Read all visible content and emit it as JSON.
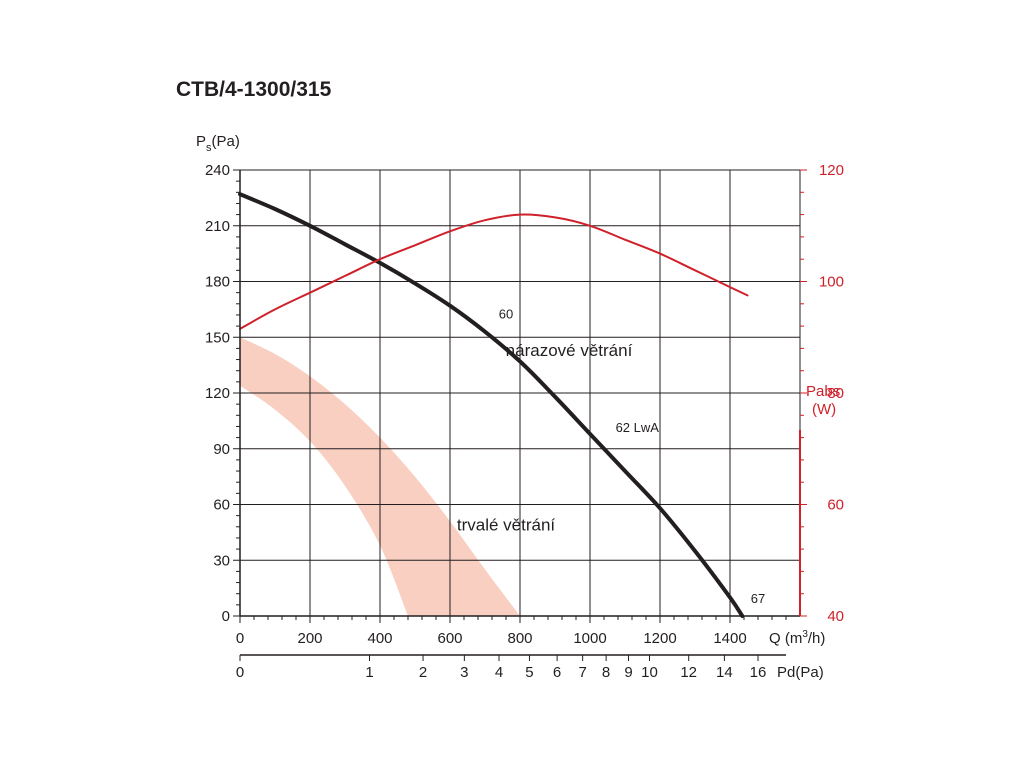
{
  "chart_data": {
    "type": "line",
    "title": "CTB/4-1300/315",
    "y_axis_left": {
      "label_main": "P",
      "label_sub": "s",
      "label_unit": "(Pa)",
      "range": [
        0,
        240
      ],
      "ticks": [
        0,
        30,
        60,
        90,
        120,
        150,
        180,
        210,
        240
      ]
    },
    "y_axis_right": {
      "label_line1": "Pabs",
      "label_line2": "(W)",
      "range": [
        40,
        120
      ],
      "ticks": [
        40,
        60,
        80,
        100,
        120
      ],
      "color": "#d0202a"
    },
    "x_axis": {
      "label": "Q (m",
      "label_sup": "3",
      "label_end": "/h)",
      "range": [
        0,
        1600
      ],
      "ticks": [
        0,
        200,
        400,
        600,
        800,
        1000,
        1200,
        1400
      ]
    },
    "x_axis_secondary": {
      "label": "Pd(Pa)",
      "ticks": [
        {
          "label": "0",
          "q": 0
        },
        {
          "label": "1",
          "q": 370
        },
        {
          "label": "2",
          "q": 523
        },
        {
          "label": "3",
          "q": 641
        },
        {
          "label": "4",
          "q": 740
        },
        {
          "label": "5",
          "q": 827
        },
        {
          "label": "6",
          "q": 906
        },
        {
          "label": "7",
          "q": 979
        },
        {
          "label": "8",
          "q": 1046
        },
        {
          "label": "9",
          "q": 1110
        },
        {
          "label": "10",
          "q": 1170
        },
        {
          "label": "12",
          "q": 1282
        },
        {
          "label": "14",
          "q": 1384
        },
        {
          "label": "16",
          "q": 1480
        }
      ]
    },
    "grid": true,
    "series": [
      {
        "axis": "left",
        "color": "#231f20",
        "x": [
          0,
          100,
          200,
          300,
          400,
          500,
          600,
          700,
          800,
          900,
          1000,
          1100,
          1200,
          1300,
          1400,
          1435
        ],
        "y": [
          227,
          219,
          210,
          200,
          190,
          179,
          167,
          153,
          137,
          118,
          98,
          78,
          58,
          35,
          10,
          0
        ]
      },
      {
        "axis": "right",
        "color": "#d0202a",
        "x": [
          0,
          100,
          200,
          300,
          400,
          500,
          600,
          700,
          800,
          900,
          1000,
          1100,
          1200,
          1300,
          1400,
          1450
        ],
        "y": [
          91.5,
          95,
          98,
          101,
          104,
          106.5,
          109,
          111,
          112,
          111.5,
          110,
          107.5,
          105,
          102,
          99,
          97.5
        ]
      }
    ],
    "bands": [
      {
        "color": "#f9cfc2",
        "upper_x": [
          0,
          100,
          200,
          300,
          400,
          500,
          600,
          700,
          800
        ],
        "upper_y": [
          150,
          141,
          129,
          114,
          96,
          75,
          51,
          25,
          0
        ],
        "lower_x": [
          0,
          100,
          200,
          300,
          400,
          480
        ],
        "lower_y": [
          124,
          111,
          94,
          70,
          38,
          0
        ]
      }
    ],
    "annotations": [
      {
        "text": "60",
        "x": 760,
        "y": 160
      },
      {
        "text": "nárazové větrání",
        "x": 940,
        "y": 140
      },
      {
        "text": "62 LwA",
        "x": 1135,
        "y": 99
      },
      {
        "text": "trvalé větrání",
        "x": 760,
        "y": 46
      },
      {
        "text": "67",
        "x": 1480,
        "y": 7
      }
    ]
  }
}
